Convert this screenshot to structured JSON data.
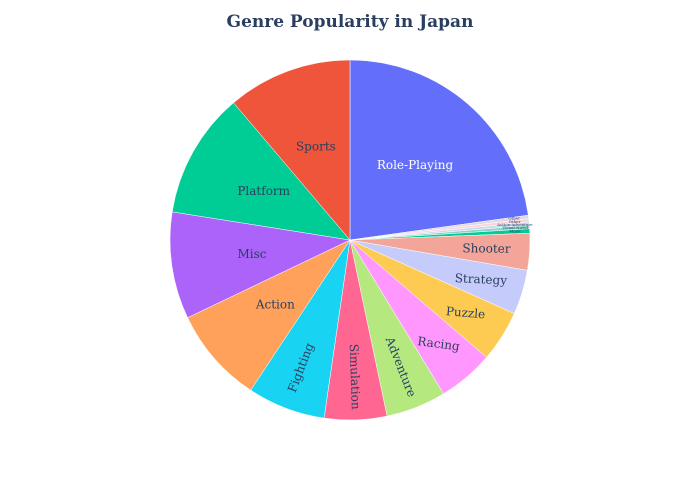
{
  "chart_data": {
    "type": "pie",
    "title": "Genre Popularity in Japan",
    "slices": [
      {
        "label": "Role-Playing",
        "value": 22.8,
        "color": "#636efa",
        "text_color": "#ffffff"
      },
      {
        "label": "Other",
        "value": 0.3,
        "color": "#d9d9e8",
        "text_color": "#2a3f5f"
      },
      {
        "label": "Other",
        "value": 0.3,
        "color": "#ffd1dc",
        "text_color": "#2a3f5f"
      },
      {
        "label": "Action-Adventure",
        "value": 0.3,
        "color": "#c6dbef",
        "text_color": "#2a3f5f"
      },
      {
        "label": "Visual Novel",
        "value": 0.3,
        "color": "#8dd3c7",
        "text_color": "#2a3f5f"
      },
      {
        "label": "Music",
        "value": 0.4,
        "color": "#00cc96",
        "text_color": "#2a3f5f"
      },
      {
        "label": "Shooter",
        "value": 3.3,
        "color": "#f4a59a",
        "text_color": "#2a3f5f"
      },
      {
        "label": "Strategy",
        "value": 4.0,
        "color": "#c5cbfb",
        "text_color": "#2a3f5f"
      },
      {
        "label": "Puzzle",
        "value": 4.6,
        "color": "#fecb52",
        "text_color": "#2a3f5f"
      },
      {
        "label": "Racing",
        "value": 5.0,
        "color": "#ff97ff",
        "text_color": "#2a3f5f"
      },
      {
        "label": "Adventure",
        "value": 5.4,
        "color": "#b6e880",
        "text_color": "#2a3f5f"
      },
      {
        "label": "Simulation",
        "value": 5.6,
        "color": "#ff6692",
        "text_color": "#2a3f5f"
      },
      {
        "label": "Fighting",
        "value": 7.0,
        "color": "#19d3f3",
        "text_color": "#2a3f5f"
      },
      {
        "label": "Action",
        "value": 8.6,
        "color": "#ffa15a",
        "text_color": "#2a3f5f"
      },
      {
        "label": "Misc",
        "value": 9.6,
        "color": "#ab63fa",
        "text_color": "#2a3f5f"
      },
      {
        "label": "Platform",
        "value": 11.3,
        "color": "#00cc96",
        "text_color": "#2a3f5f"
      },
      {
        "label": "Sports",
        "value": 11.2,
        "color": "#ef553b",
        "text_color": "#2a3f5f"
      }
    ]
  }
}
